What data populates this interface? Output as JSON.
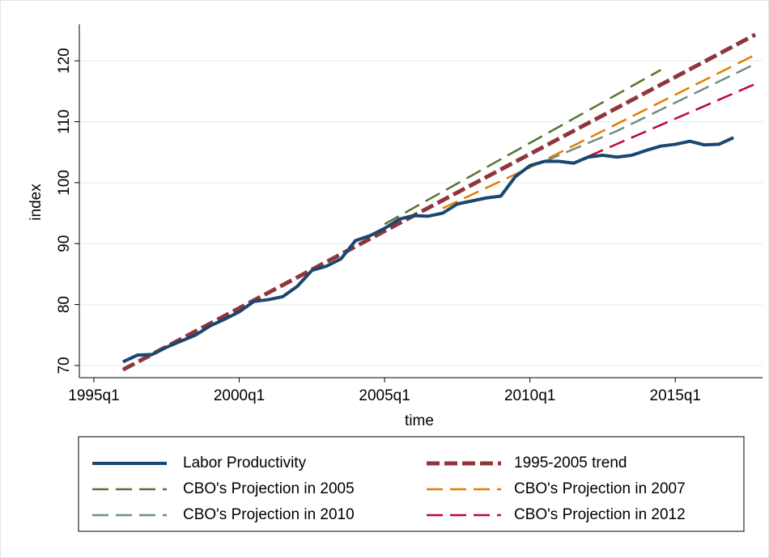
{
  "chart_data": {
    "type": "line",
    "xlabel": "time",
    "ylabel": "index",
    "xlim": [
      "1994q3",
      "2018q1"
    ],
    "xticks": [
      "1995q1",
      "2000q1",
      "2005q1",
      "2010q1",
      "2015q1"
    ],
    "ylim": [
      68,
      126
    ],
    "yticks": [
      70,
      80,
      90,
      100,
      110,
      120
    ],
    "grid": true,
    "legend": "bottom",
    "series": [
      {
        "name": "Labor Productivity",
        "color": "#1a476f",
        "style": "solid",
        "x": [
          "1996q1",
          "1996q3",
          "1997q1",
          "1997q3",
          "1998q1",
          "1998q3",
          "1999q1",
          "1999q3",
          "2000q1",
          "2000q3",
          "2001q1",
          "2001q3",
          "2002q1",
          "2002q3",
          "2003q1",
          "2003q3",
          "2004q1",
          "2004q3",
          "2005q1",
          "2005q3",
          "2006q1",
          "2006q3",
          "2007q1",
          "2007q3",
          "2008q1",
          "2008q3",
          "2009q1",
          "2009q3",
          "2010q1",
          "2010q3",
          "2011q1",
          "2011q3",
          "2012q1",
          "2012q3",
          "2013q1",
          "2013q3",
          "2014q1",
          "2014q3",
          "2015q1",
          "2015q3",
          "2016q1",
          "2016q3",
          "2017q1"
        ],
        "values": [
          70.6,
          71.7,
          71.8,
          73.0,
          74.0,
          75.0,
          76.5,
          77.6,
          78.8,
          80.5,
          80.8,
          81.3,
          83.0,
          85.6,
          86.3,
          87.5,
          90.5,
          91.3,
          92.5,
          94.0,
          94.6,
          94.5,
          95.0,
          96.5,
          97.0,
          97.5,
          97.8,
          101.0,
          102.8,
          103.5,
          103.5,
          103.2,
          104.2,
          104.5,
          104.2,
          104.5,
          105.3,
          106.0,
          106.3,
          106.8,
          106.2,
          106.3,
          107.4
        ]
      },
      {
        "name": "1995-2005 trend",
        "color": "#90353b",
        "style": "dashed",
        "x": [
          "1996q1",
          "2017q4"
        ],
        "values": [
          69.3,
          124.3
        ]
      },
      {
        "name": "CBO's Projection in 2005",
        "color": "#55752f",
        "style": "dashed",
        "x": [
          "2005q1",
          "2014q3"
        ],
        "values": [
          93.2,
          118.5
        ]
      },
      {
        "name": "CBO's Projection in 2007",
        "color": "#e37e00",
        "style": "dashed",
        "x": [
          "2007q1",
          "2010q1",
          "2017q4"
        ],
        "values": [
          95.8,
          102.5,
          121
        ]
      },
      {
        "name": "CBO's Projection in 2010",
        "color": "#6e8e84",
        "style": "dashed",
        "x": [
          "2010q3",
          "2013q1",
          "2017q4"
        ],
        "values": [
          103.5,
          108.5,
          119.5
        ]
      },
      {
        "name": "CBO's Projection in 2012",
        "color": "#c10534",
        "style": "dashed",
        "x": [
          "2012q1",
          "2015q1",
          "2017q4"
        ],
        "values": [
          104.3,
          110.5,
          116.2
        ]
      }
    ]
  }
}
